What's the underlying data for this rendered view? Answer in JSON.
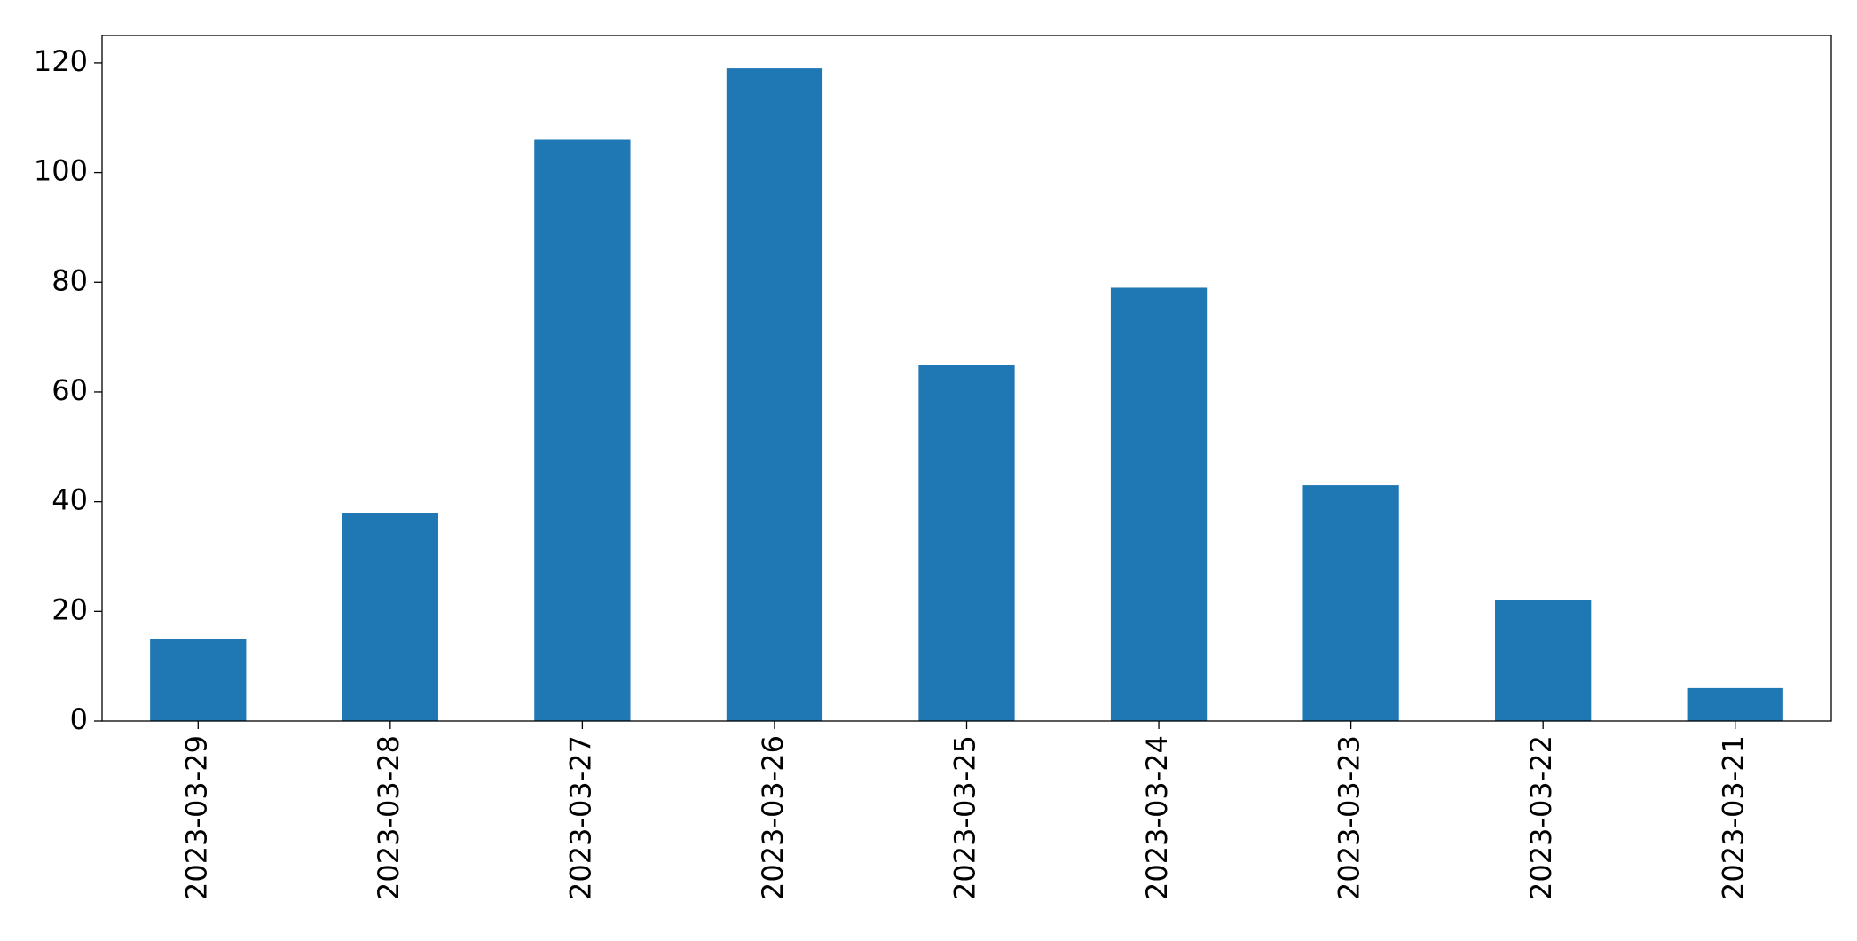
{
  "chart_data": {
    "type": "bar",
    "categories": [
      "2023-03-29",
      "2023-03-28",
      "2023-03-27",
      "2023-03-26",
      "2023-03-25",
      "2023-03-24",
      "2023-03-23",
      "2023-03-22",
      "2023-03-21"
    ],
    "values": [
      15,
      38,
      106,
      119,
      65,
      79,
      43,
      22,
      6
    ],
    "color": "#1f77b4",
    "ylim": [
      0,
      125
    ],
    "yticks": [
      0,
      20,
      40,
      60,
      80,
      100,
      120
    ],
    "grid": false
  }
}
